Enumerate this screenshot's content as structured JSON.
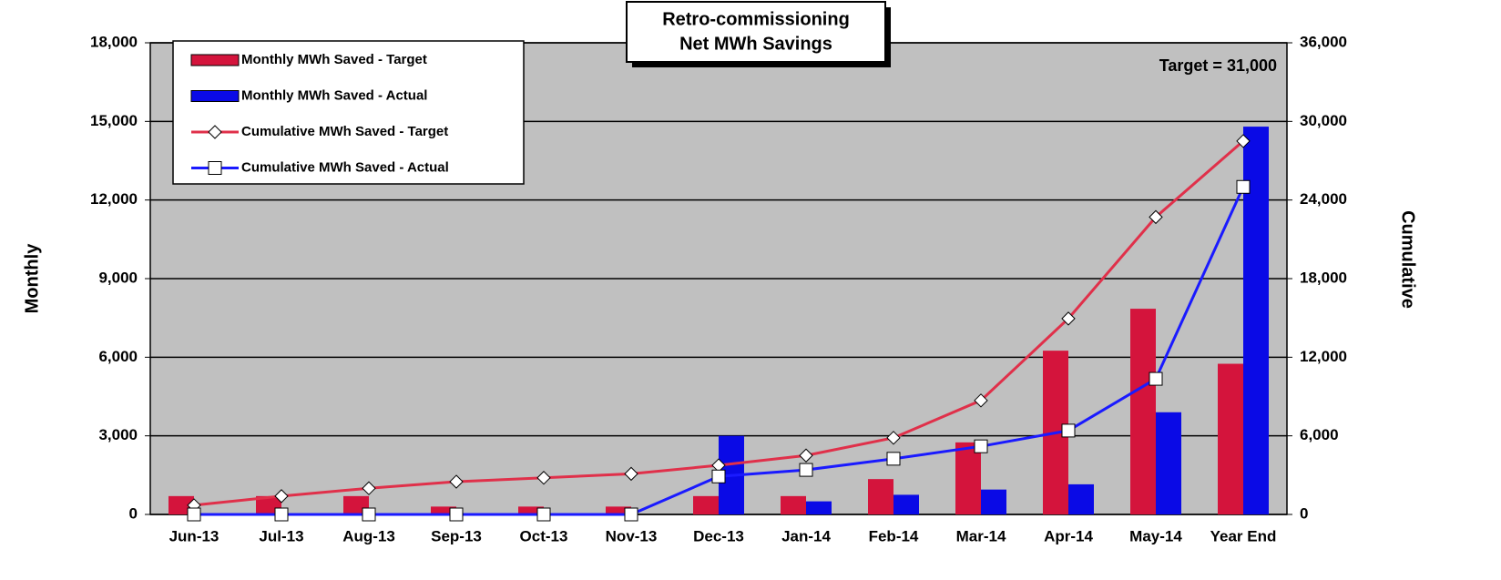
{
  "chart_data": {
    "type": "bar_line",
    "title": "Retro-commissioning",
    "subtitle": "Net MWh Savings",
    "annotation": "Target = 31,000",
    "ylabel": "Monthly",
    "y2label": "Cumulative",
    "categories": [
      "Jun-13",
      "Jul-13",
      "Aug-13",
      "Sep-13",
      "Oct-13",
      "Nov-13",
      "Dec-13",
      "Jan-14",
      "Feb-14",
      "Mar-14",
      "Apr-14",
      "May-14",
      "Year End"
    ],
    "series": [
      {
        "name": "Monthly MWh Saved - Target",
        "type": "bar",
        "color": "#d4143c",
        "values": [
          700,
          700,
          700,
          300,
          300,
          300,
          700,
          700,
          1350,
          2750,
          6250,
          7850,
          5750
        ]
      },
      {
        "name": "Monthly MWh Saved - Actual",
        "type": "bar",
        "color": "#0a0ae6",
        "values": [
          0,
          0,
          0,
          0,
          0,
          0,
          3000,
          500,
          750,
          950,
          1150,
          3900,
          14800
        ]
      },
      {
        "name": "Cumulative MWh Saved - Target",
        "type": "line",
        "axis": "y2",
        "marker": "diamond",
        "color": "#e0304a",
        "values": [
          700,
          1400,
          2000,
          2500,
          2800,
          3100,
          3750,
          4500,
          5850,
          8700,
          14950,
          22700,
          28500
        ]
      },
      {
        "name": "Cumulative MWh Saved - Actual",
        "type": "line",
        "axis": "y2",
        "marker": "square",
        "color": "#1a1aff",
        "values": [
          0,
          0,
          0,
          0,
          0,
          0,
          2900,
          3400,
          4250,
          5200,
          6400,
          10350,
          25000
        ]
      }
    ],
    "ylim": [
      0,
      18000
    ],
    "yticks": [
      0,
      {
        "value": 3000,
        "label": "3,000"
      },
      {
        "value": 6000,
        "label": "6,000"
      },
      {
        "value": 9000,
        "label": "9,000"
      },
      {
        "value": 12000,
        "label": "12,000"
      },
      {
        "value": 15000,
        "label": "15,000"
      },
      {
        "value": 18000,
        "label": "18,000"
      }
    ],
    "y2lim": [
      0,
      36000
    ],
    "y2ticks": [
      0,
      {
        "value": 6000,
        "label": "6,000"
      },
      {
        "value": 12000,
        "label": "12,000"
      },
      {
        "value": 18000,
        "label": "18,000"
      },
      {
        "value": 24000,
        "label": "24,000"
      },
      {
        "value": 30000,
        "label": "30,000"
      },
      {
        "value": 36000,
        "label": "36,000"
      }
    ],
    "grid": true,
    "legend": "upper left",
    "background": "#c0c0c0"
  }
}
